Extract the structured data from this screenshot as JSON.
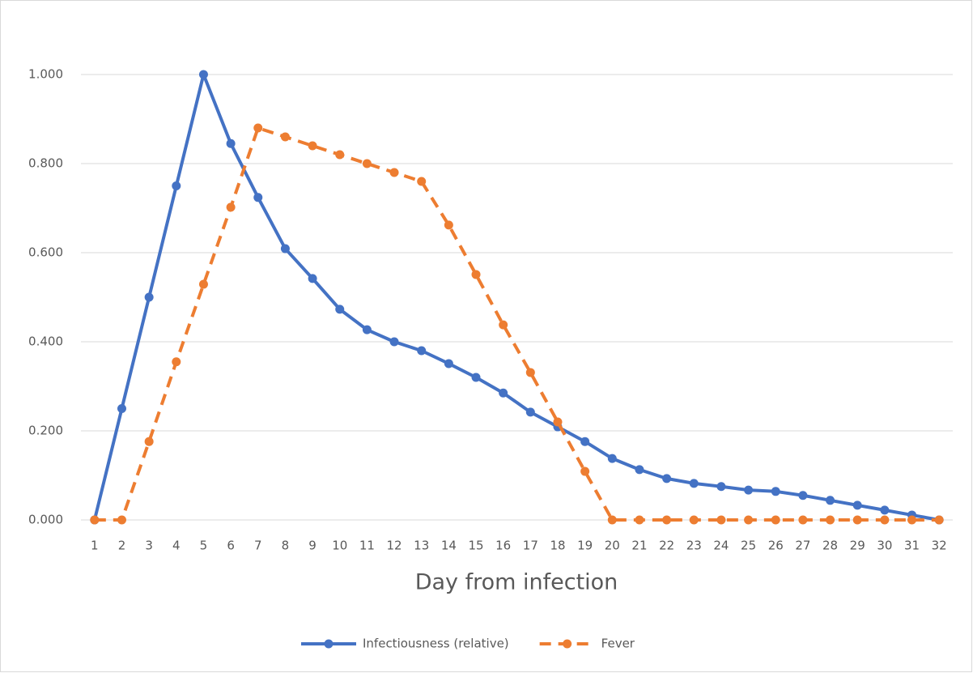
{
  "chart_data": {
    "type": "line",
    "x_label": "Day from infection",
    "categories": [
      "1",
      "2",
      "3",
      "4",
      "5",
      "6",
      "7",
      "8",
      "9",
      "10",
      "11",
      "12",
      "13",
      "14",
      "15",
      "16",
      "17",
      "18",
      "19",
      "20",
      "21",
      "22",
      "23",
      "24",
      "25",
      "26",
      "27",
      "28",
      "29",
      "30",
      "31",
      "32"
    ],
    "series": [
      {
        "name": "Infectiousness (relative)",
        "color": "#4472c4",
        "line_style": "solid",
        "values": [
          0,
          0.25,
          0.5,
          0.75,
          1.0,
          0.845,
          0.724,
          0.609,
          0.542,
          0.473,
          0.427,
          0.4,
          0.38,
          0.351,
          0.32,
          0.285,
          0.242,
          0.209,
          0.176,
          0.138,
          0.113,
          0.093,
          0.082,
          0.075,
          0.067,
          0.064,
          0.055,
          0.044,
          0.033,
          0.022,
          0.011,
          0
        ]
      },
      {
        "name": "Fever",
        "color": "#ed7d31",
        "line_style": "dashed",
        "values": [
          0,
          0,
          0.176,
          0.355,
          0.529,
          0.702,
          0.88,
          0.86,
          0.84,
          0.82,
          0.8,
          0.78,
          0.76,
          0.662,
          0.551,
          0.438,
          0.331,
          0.22,
          0.109,
          0,
          0,
          0,
          0,
          0,
          0,
          0,
          0,
          0,
          0,
          0,
          0,
          0
        ]
      }
    ],
    "ylim": [
      0,
      1
    ],
    "yticks": [
      {
        "value": 0,
        "label": "0.000"
      },
      {
        "value": 0.2,
        "label": "0.200"
      },
      {
        "value": 0.4,
        "label": "0.400"
      },
      {
        "value": 0.6,
        "label": "0.600"
      },
      {
        "value": 0.8,
        "label": "0.800"
      },
      {
        "value": 1,
        "label": "1.000"
      }
    ],
    "grid": true,
    "legend": "bottom"
  }
}
